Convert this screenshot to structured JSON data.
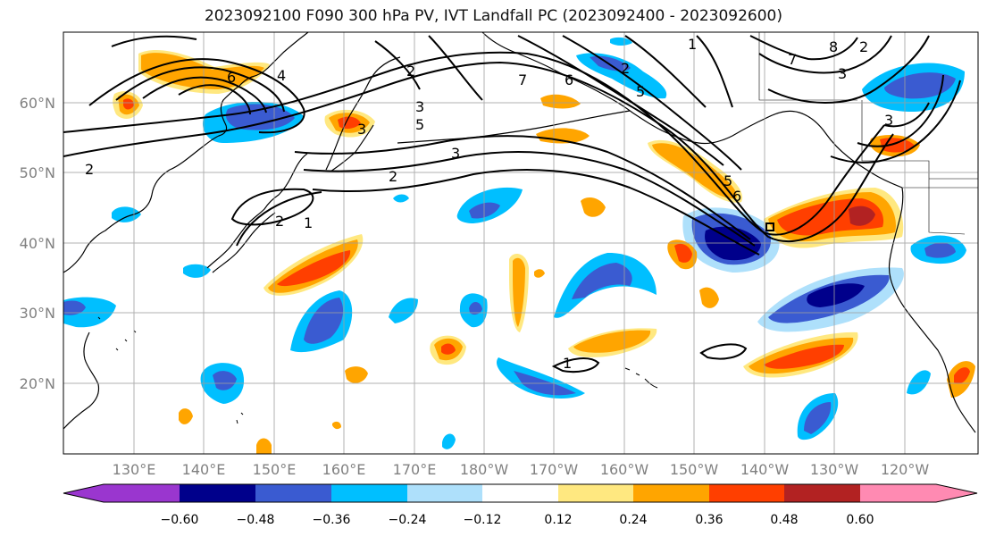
{
  "title": "2023092100 F090 300 hPa PV, IVT Landfall PC (2023092400 - 2023092600)",
  "lon_labels": [
    "130°E",
    "140°E",
    "150°E",
    "160°E",
    "170°E",
    "180°W",
    "170°W",
    "160°W",
    "150°W",
    "140°W",
    "130°W",
    "120°W"
  ],
  "lat_labels": [
    "60°N",
    "50°N",
    "40°N",
    "30°N",
    "20°N"
  ],
  "colorbar": {
    "colors": [
      "#9a36cf",
      "#00008b",
      "#3a5bd1",
      "#00bfff",
      "#aee0fb",
      "#ffffff",
      "#ffe880",
      "#ffa500",
      "#ff3f00",
      "#b22222",
      "#ff8ab2"
    ],
    "tick_labels": [
      "−0.60",
      "−0.48",
      "−0.36",
      "−0.24",
      "−0.12",
      "0.12",
      "0.24",
      "0.36",
      "0.48",
      "0.60"
    ]
  },
  "contour_labels": [
    "6",
    "4",
    "2",
    "3",
    "5",
    "7",
    "2",
    "3",
    "2",
    "2",
    "1",
    "6",
    "5",
    "2",
    "5",
    "7",
    "8",
    "3",
    "1",
    "2",
    "3",
    "3",
    "6",
    "1"
  ],
  "colors": {
    "land_line": "#000000",
    "grid": "#9e9e9e",
    "contour": "#000000",
    "axis_label": "#808080"
  }
}
